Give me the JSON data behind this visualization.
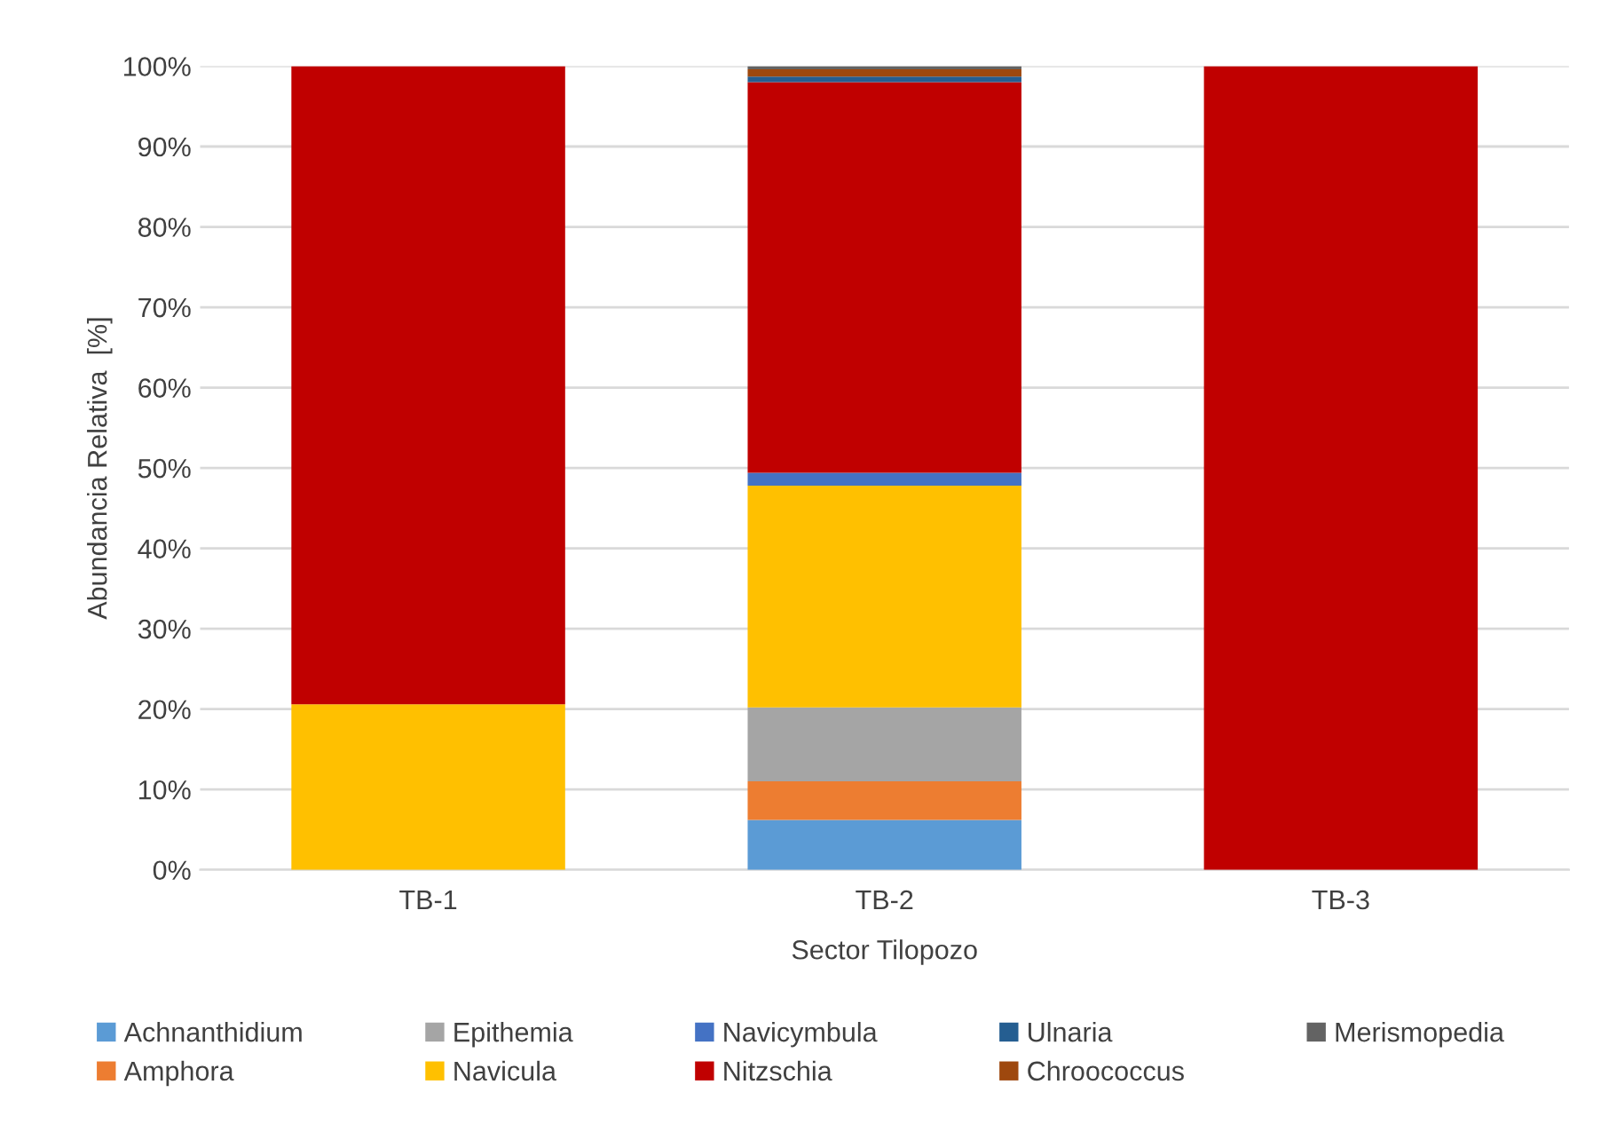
{
  "chart_data": {
    "type": "bar",
    "stacked": true,
    "xlabel": "Sector Tilopozo",
    "ylabel": "Abundancia Relativa  [%]",
    "categories": [
      "TB-1",
      "TB-2",
      "TB-3"
    ],
    "series": [
      {
        "name": "Achnanthidium",
        "color": "#5b9bd5",
        "values": [
          0,
          6.2,
          0
        ]
      },
      {
        "name": "Amphora",
        "color": "#ed7d31",
        "values": [
          0,
          4.8,
          0
        ]
      },
      {
        "name": "Epithemia",
        "color": "#a5a5a5",
        "values": [
          0,
          9.2,
          0
        ]
      },
      {
        "name": "Navicula",
        "color": "#ffc000",
        "values": [
          20.6,
          27.6,
          0
        ]
      },
      {
        "name": "Navicymbula",
        "color": "#4472c4",
        "values": [
          0,
          1.6,
          0
        ]
      },
      {
        "name": "Nitzschia",
        "color": "#c00000",
        "values": [
          79.4,
          48.6,
          100
        ]
      },
      {
        "name": "Ulnaria",
        "color": "#255e91",
        "values": [
          0,
          0.7,
          0
        ]
      },
      {
        "name": "Chroococcus",
        "color": "#9e480e",
        "values": [
          0,
          0.9,
          0
        ]
      },
      {
        "name": "Merismopedia",
        "color": "#636363",
        "values": [
          0,
          0.4,
          0
        ]
      }
    ],
    "ylim": [
      0,
      100
    ],
    "yticks": [
      {
        "value": 0,
        "label": "0%"
      },
      {
        "value": 10,
        "label": "10%"
      },
      {
        "value": 20,
        "label": "20%"
      },
      {
        "value": 30,
        "label": "30%"
      },
      {
        "value": 40,
        "label": "40%"
      },
      {
        "value": 50,
        "label": "50%"
      },
      {
        "value": 60,
        "label": "60%"
      },
      {
        "value": 70,
        "label": "70%"
      },
      {
        "value": 80,
        "label": "80%"
      },
      {
        "value": 90,
        "label": "90%"
      },
      {
        "value": 100,
        "label": "100%"
      }
    ],
    "grid": "y",
    "legend": "bottom"
  }
}
